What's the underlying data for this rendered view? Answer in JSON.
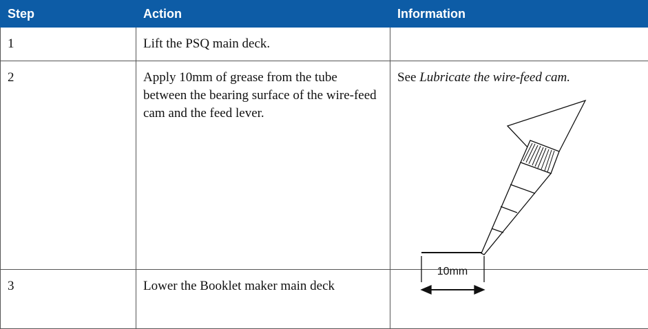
{
  "table": {
    "headers": [
      "Step",
      "Action",
      "Information"
    ],
    "rows": [
      {
        "step": "1",
        "action": "Lift the PSQ main deck."
      },
      {
        "step": "2",
        "action": "Apply 10mm of grease from the tube between the bearing surface of the wire-feed cam and the feed lever.",
        "info_prefix": "See",
        "info_link": "Lubricate the wire-feed cam.",
        "figure_label": "10mm"
      },
      {
        "step": "3",
        "action": "Lower the Booklet maker main deck"
      }
    ]
  }
}
